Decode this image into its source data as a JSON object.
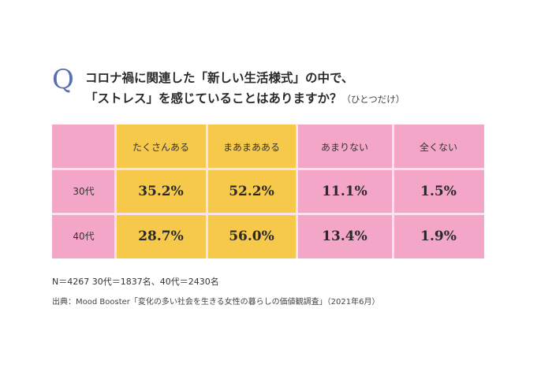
{
  "question": {
    "mark": "Q",
    "line1": "コロナ禍に関連した「新しい生活様式」の中で、",
    "line2": "「ストレス」を感じていることはありますか？",
    "note": "（ひとつだけ）"
  },
  "chart_data": {
    "type": "table",
    "columns": [
      "たくさんある",
      "まあまあある",
      "あまりない",
      "全くない"
    ],
    "rows": [
      {
        "label": "30代",
        "values": [
          "35.2%",
          "52.2%",
          "11.1%",
          "1.5%"
        ]
      },
      {
        "label": "40代",
        "values": [
          "28.7%",
          "56.0%",
          "13.4%",
          "1.9%"
        ]
      }
    ],
    "column_colors": [
      "#f7c94a",
      "#f7c94a",
      "#f3a6c7",
      "#f3a6c7"
    ],
    "label_color": "#f3a6c7"
  },
  "footer": {
    "sample": "N＝4267 30代＝1837名、40代＝2430名",
    "source": "出典：Mood Booster「変化の多い社会を生きる女性の暮らしの価値観調査」（2021年6月）"
  }
}
